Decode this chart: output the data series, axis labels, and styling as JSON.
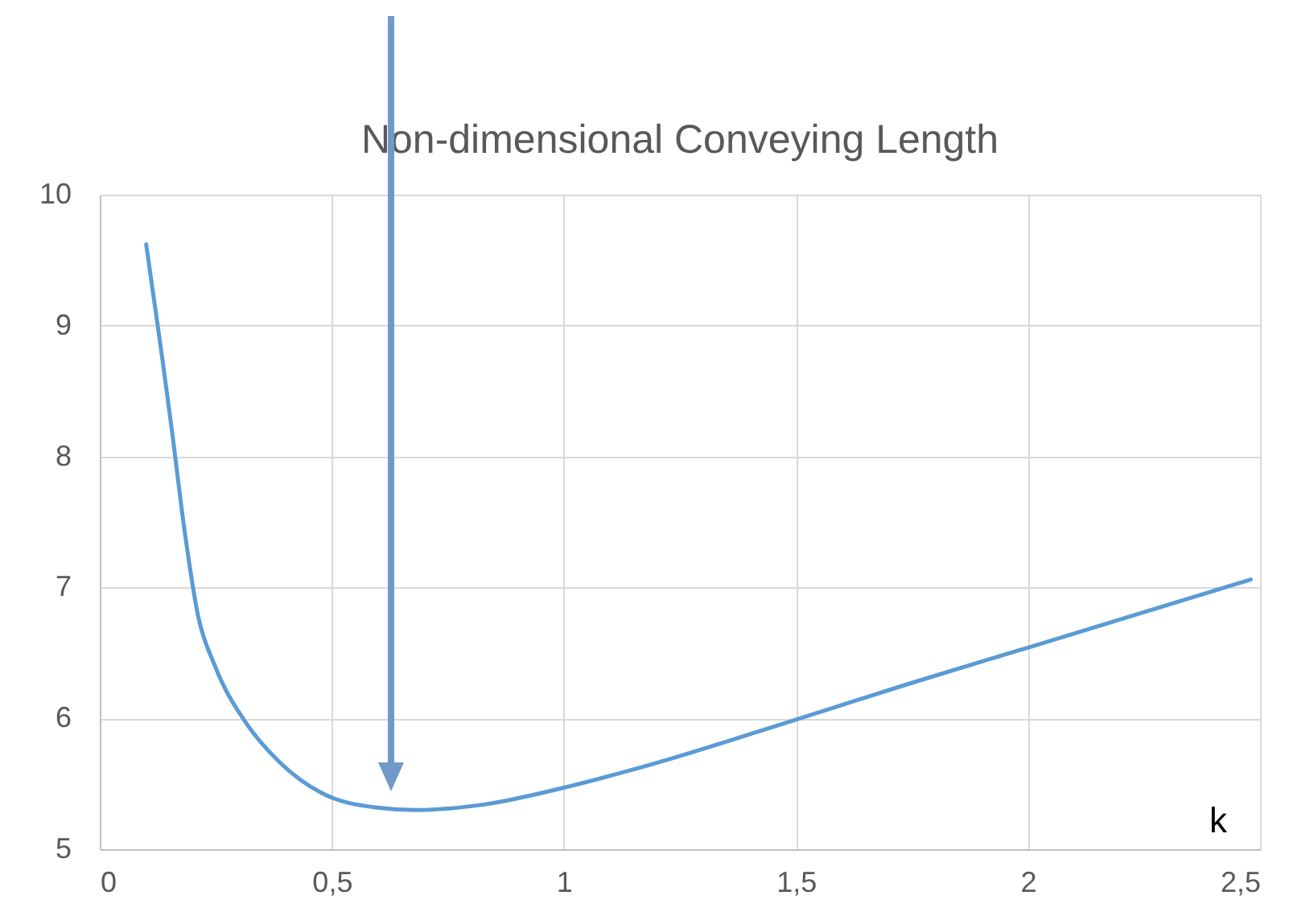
{
  "chart_data": {
    "type": "line",
    "title": "Non-dimensional Conveying Length",
    "xlabel": "k",
    "x": [
      0.1,
      0.132,
      0.155,
      0.184,
      0.212,
      0.247,
      0.316,
      0.386,
      0.478,
      0.594,
      0.686,
      0.825,
      1.0,
      1.171,
      1.5,
      1.749,
      2.0,
      2.48
    ],
    "series": [
      {
        "color": "#5b9bd5",
        "values": [
          9.62,
          8.82,
          8.21,
          7.4,
          6.78,
          6.41,
          5.96,
          5.67,
          5.43,
          5.32,
          5.3,
          5.34,
          5.47,
          5.63,
          5.99,
          6.27,
          6.54,
          7.06
        ]
      }
    ],
    "xlim": [
      0,
      2.5
    ],
    "xticks": [
      0,
      {
        "value": 0.5,
        "label": "0,5"
      },
      1,
      {
        "value": 1.5,
        "label": "1,5"
      },
      2,
      {
        "value": 2.5,
        "label": "2,5"
      }
    ],
    "ylim": [
      5,
      10
    ],
    "yticks": [
      5,
      6,
      7,
      8,
      9,
      10
    ],
    "grid": true,
    "marker": "none",
    "line_style": "solid"
  }
}
